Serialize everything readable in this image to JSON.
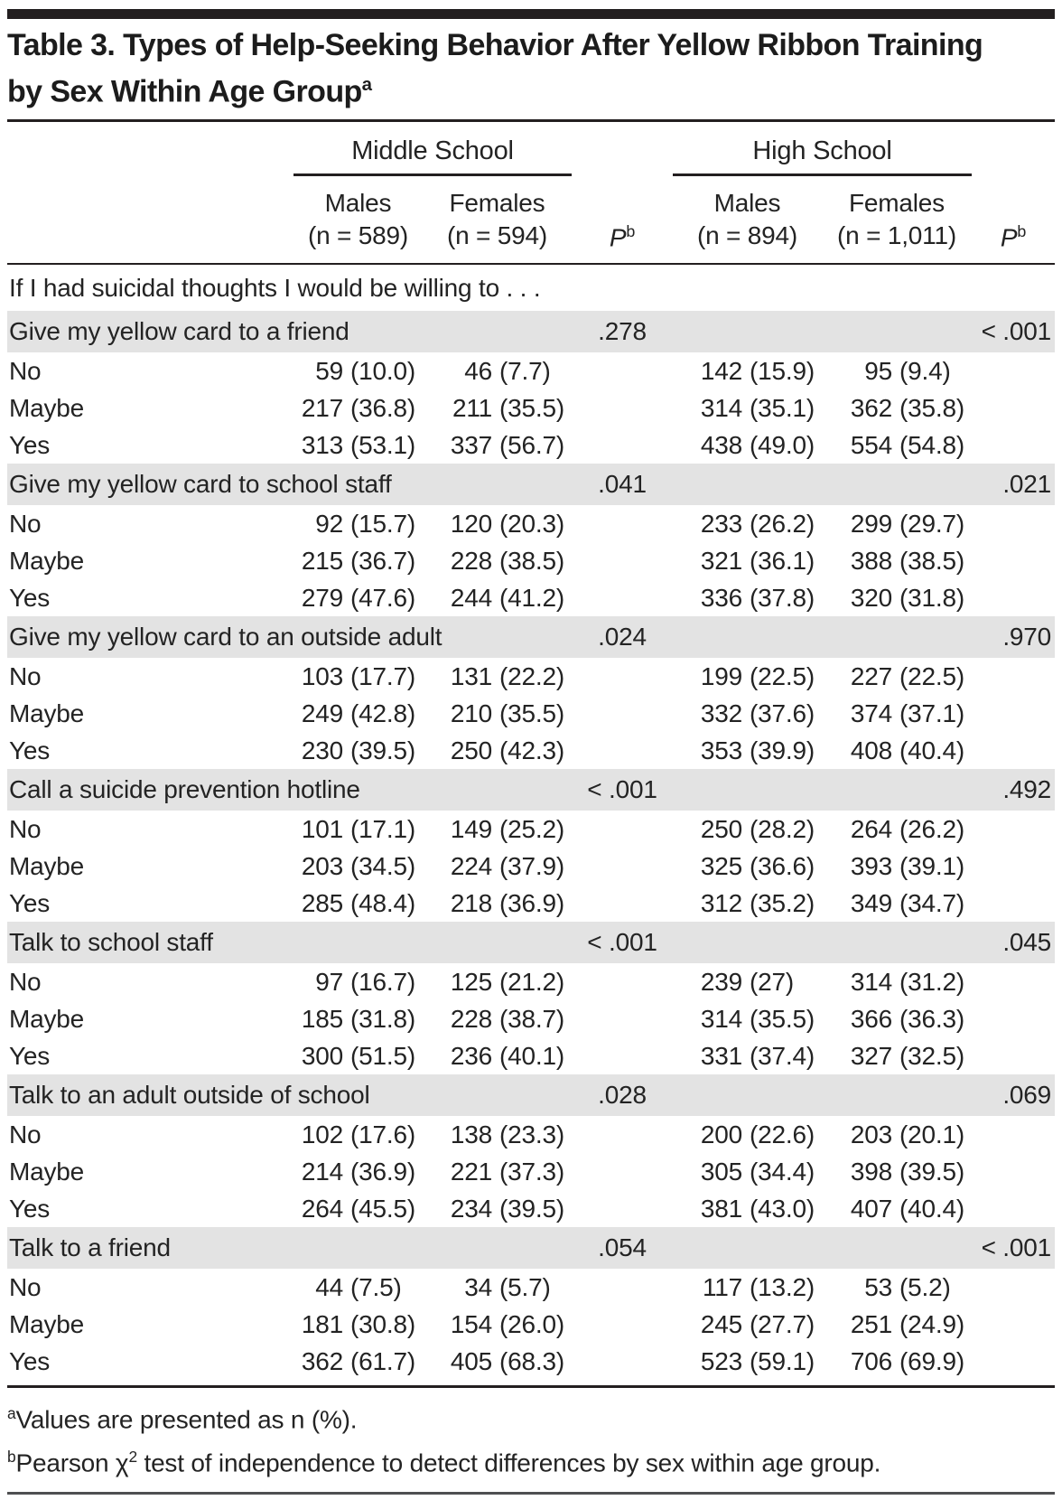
{
  "colors": {
    "section_row_shade": "#e3e3e3",
    "rule_dark": "#231f20",
    "rule_bottom_gray": "#4e4f51"
  },
  "table": {
    "title": {
      "line1": "Table 3. Types of Help-Seeking Behavior After Yellow Ribbon Training",
      "line2": "by Sex Within Age Group",
      "sup": "a"
    },
    "groups": [
      "Middle School",
      "High School"
    ],
    "columns": [
      {
        "label": "Males",
        "n": "(n = 589)"
      },
      {
        "label": "Females",
        "n": "(n = 594)"
      },
      {
        "label": "P",
        "sup": "b"
      },
      {
        "label": "Males",
        "n": "(n = 894)"
      },
      {
        "label": "Females",
        "n": "(n = 1,011)"
      },
      {
        "label": "P",
        "sup": "b"
      }
    ],
    "question": "If I had suicidal thoughts I would be willing to . . .",
    "sections": [
      {
        "behavior": "Give my yellow card to a friend",
        "p_middle": ".278",
        "p_high": "< .001",
        "rows": [
          {
            "response": "No",
            "cells": [
              [
                "59",
                "(10.0)"
              ],
              [
                "46",
                "(7.7)"
              ],
              [
                "142",
                "(15.9)"
              ],
              [
                "95",
                "(9.4)"
              ]
            ]
          },
          {
            "response": "Maybe",
            "cells": [
              [
                "217",
                "(36.8)"
              ],
              [
                "211",
                "(35.5)"
              ],
              [
                "314",
                "(35.1)"
              ],
              [
                "362",
                "(35.8)"
              ]
            ]
          },
          {
            "response": "Yes",
            "cells": [
              [
                "313",
                "(53.1)"
              ],
              [
                "337",
                "(56.7)"
              ],
              [
                "438",
                "(49.0)"
              ],
              [
                "554",
                "(54.8)"
              ]
            ]
          }
        ]
      },
      {
        "behavior": "Give my yellow card to school staff",
        "p_middle": ".041",
        "p_high": ".021",
        "rows": [
          {
            "response": "No",
            "cells": [
              [
                "92",
                "(15.7)"
              ],
              [
                "120",
                "(20.3)"
              ],
              [
                "233",
                "(26.2)"
              ],
              [
                "299",
                "(29.7)"
              ]
            ]
          },
          {
            "response": "Maybe",
            "cells": [
              [
                "215",
                "(36.7)"
              ],
              [
                "228",
                "(38.5)"
              ],
              [
                "321",
                "(36.1)"
              ],
              [
                "388",
                "(38.5)"
              ]
            ]
          },
          {
            "response": "Yes",
            "cells": [
              [
                "279",
                "(47.6)"
              ],
              [
                "244",
                "(41.2)"
              ],
              [
                "336",
                "(37.8)"
              ],
              [
                "320",
                "(31.8)"
              ]
            ]
          }
        ]
      },
      {
        "behavior": "Give my yellow card to an outside adult",
        "p_middle": ".024",
        "p_high": ".970",
        "rows": [
          {
            "response": "No",
            "cells": [
              [
                "103",
                "(17.7)"
              ],
              [
                "131",
                "(22.2)"
              ],
              [
                "199",
                "(22.5)"
              ],
              [
                "227",
                "(22.5)"
              ]
            ]
          },
          {
            "response": "Maybe",
            "cells": [
              [
                "249",
                "(42.8)"
              ],
              [
                "210",
                "(35.5)"
              ],
              [
                "332",
                "(37.6)"
              ],
              [
                "374",
                "(37.1)"
              ]
            ]
          },
          {
            "response": "Yes",
            "cells": [
              [
                "230",
                "(39.5)"
              ],
              [
                "250",
                "(42.3)"
              ],
              [
                "353",
                "(39.9)"
              ],
              [
                "408",
                "(40.4)"
              ]
            ]
          }
        ]
      },
      {
        "behavior": "Call a suicide prevention hotline",
        "p_middle": "< .001",
        "p_high": ".492",
        "rows": [
          {
            "response": "No",
            "cells": [
              [
                "101",
                "(17.1)"
              ],
              [
                "149",
                "(25.2)"
              ],
              [
                "250",
                "(28.2)"
              ],
              [
                "264",
                "(26.2)"
              ]
            ]
          },
          {
            "response": "Maybe",
            "cells": [
              [
                "203",
                "(34.5)"
              ],
              [
                "224",
                "(37.9)"
              ],
              [
                "325",
                "(36.6)"
              ],
              [
                "393",
                "(39.1)"
              ]
            ]
          },
          {
            "response": "Yes",
            "cells": [
              [
                "285",
                "(48.4)"
              ],
              [
                "218",
                "(36.9)"
              ],
              [
                "312",
                "(35.2)"
              ],
              [
                "349",
                "(34.7)"
              ]
            ]
          }
        ]
      },
      {
        "behavior": "Talk to school staff",
        "p_middle": "< .001",
        "p_high": ".045",
        "rows": [
          {
            "response": "No",
            "cells": [
              [
                "97",
                "(16.7)"
              ],
              [
                "125",
                "(21.2)"
              ],
              [
                "239",
                "(27)"
              ],
              [
                "314",
                "(31.2)"
              ]
            ]
          },
          {
            "response": "Maybe",
            "cells": [
              [
                "185",
                "(31.8)"
              ],
              [
                "228",
                "(38.7)"
              ],
              [
                "314",
                "(35.5)"
              ],
              [
                "366",
                "(36.3)"
              ]
            ]
          },
          {
            "response": "Yes",
            "cells": [
              [
                "300",
                "(51.5)"
              ],
              [
                "236",
                "(40.1)"
              ],
              [
                "331",
                "(37.4)"
              ],
              [
                "327",
                "(32.5)"
              ]
            ]
          }
        ]
      },
      {
        "behavior": "Talk to an adult outside of school",
        "p_middle": ".028",
        "p_high": ".069",
        "rows": [
          {
            "response": "No",
            "cells": [
              [
                "102",
                "(17.6)"
              ],
              [
                "138",
                "(23.3)"
              ],
              [
                "200",
                "(22.6)"
              ],
              [
                "203",
                "(20.1)"
              ]
            ]
          },
          {
            "response": "Maybe",
            "cells": [
              [
                "214",
                "(36.9)"
              ],
              [
                "221",
                "(37.3)"
              ],
              [
                "305",
                "(34.4)"
              ],
              [
                "398",
                "(39.5)"
              ]
            ]
          },
          {
            "response": "Yes",
            "cells": [
              [
                "264",
                "(45.5)"
              ],
              [
                "234",
                "(39.5)"
              ],
              [
                "381",
                "(43.0)"
              ],
              [
                "407",
                "(40.4)"
              ]
            ]
          }
        ]
      },
      {
        "behavior": "Talk to a friend",
        "p_middle": ".054",
        "p_high": "< .001",
        "rows": [
          {
            "response": "No",
            "cells": [
              [
                "44",
                "(7.5)"
              ],
              [
                "34",
                "(5.7)"
              ],
              [
                "117",
                "(13.2)"
              ],
              [
                "53",
                "(5.2)"
              ]
            ]
          },
          {
            "response": "Maybe",
            "cells": [
              [
                "181",
                "(30.8)"
              ],
              [
                "154",
                "(26.0)"
              ],
              [
                "245",
                "(27.7)"
              ],
              [
                "251",
                "(24.9)"
              ]
            ]
          },
          {
            "response": "Yes",
            "cells": [
              [
                "362",
                "(61.7)"
              ],
              [
                "405",
                "(68.3)"
              ],
              [
                "523",
                "(59.1)"
              ],
              [
                "706",
                "(69.9)"
              ]
            ]
          }
        ]
      }
    ]
  },
  "footnotes": [
    {
      "sup": "a",
      "text": "Values are presented as n (%)."
    },
    {
      "sup": "b",
      "pre": "Pearson χ",
      "sup2": "2",
      "post": " test of independence to detect differences by sex within age group."
    }
  ]
}
